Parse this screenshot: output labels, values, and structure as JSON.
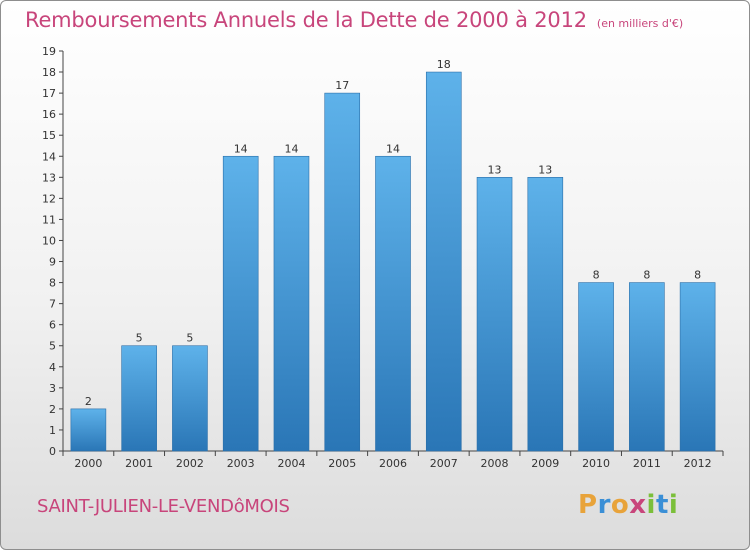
{
  "header": {
    "title": "Remboursements Annuels de la Dette de 2000 à 2012",
    "unit": "(en milliers d'€)"
  },
  "footer": {
    "commune": "SAINT-JULIEN-LE-VENDôMOIS",
    "logo": {
      "letters": [
        "P",
        "r",
        "o",
        "x",
        "i",
        "t",
        "i"
      ],
      "colors": [
        "#e8a33a",
        "#3a8fd6",
        "#e8a33a",
        "#c8457b",
        "#7bbf3a",
        "#3a8fd6",
        "#7bbf3a"
      ]
    }
  },
  "chart_data": {
    "type": "bar",
    "title": "Remboursements Annuels de la Dette de 2000 à 2012",
    "xlabel": "",
    "ylabel": "",
    "categories": [
      "2000",
      "2001",
      "2002",
      "2003",
      "2004",
      "2005",
      "2006",
      "2007",
      "2008",
      "2009",
      "2010",
      "2011",
      "2012"
    ],
    "values": [
      2,
      5,
      5,
      14,
      14,
      17,
      14,
      18,
      13,
      13,
      8,
      8,
      8
    ],
    "ylim": [
      0,
      19
    ],
    "yticks": [
      0,
      1,
      2,
      3,
      4,
      5,
      6,
      7,
      8,
      9,
      10,
      11,
      12,
      13,
      14,
      15,
      16,
      17,
      18,
      19
    ],
    "grid": false,
    "bar_color_light": "#5aaee8",
    "bar_color_dark": "#2a78b8"
  }
}
